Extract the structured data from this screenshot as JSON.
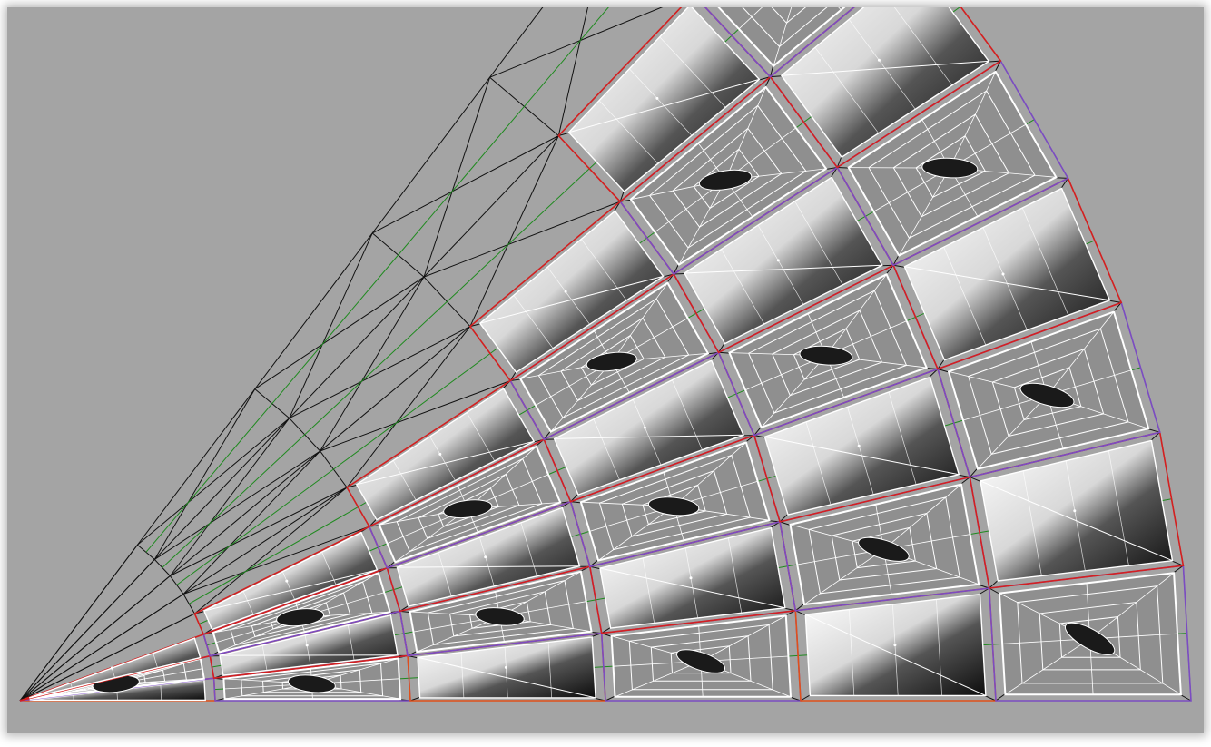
{
  "viewport": {
    "background": "#a4a4a4",
    "content": "parametric-diamond-panel-grid"
  },
  "structure": {
    "rays": 9,
    "rings": 6,
    "apex_corner": "bottom-left",
    "outer_boundary": "circular-arc"
  },
  "colors": {
    "grid_line": "#111111",
    "divider_line": "#1f8a1f",
    "panel_edge_red": "#d42020",
    "panel_edge_orange": "#e0501a",
    "panel_edge_purple": "#7b4cc2",
    "panel_wire": "#ffffff",
    "shade_dark": "#0c0c0c"
  },
  "panel_styles": [
    "shaded-diamond",
    "wireframe-cushion"
  ],
  "icons": {}
}
